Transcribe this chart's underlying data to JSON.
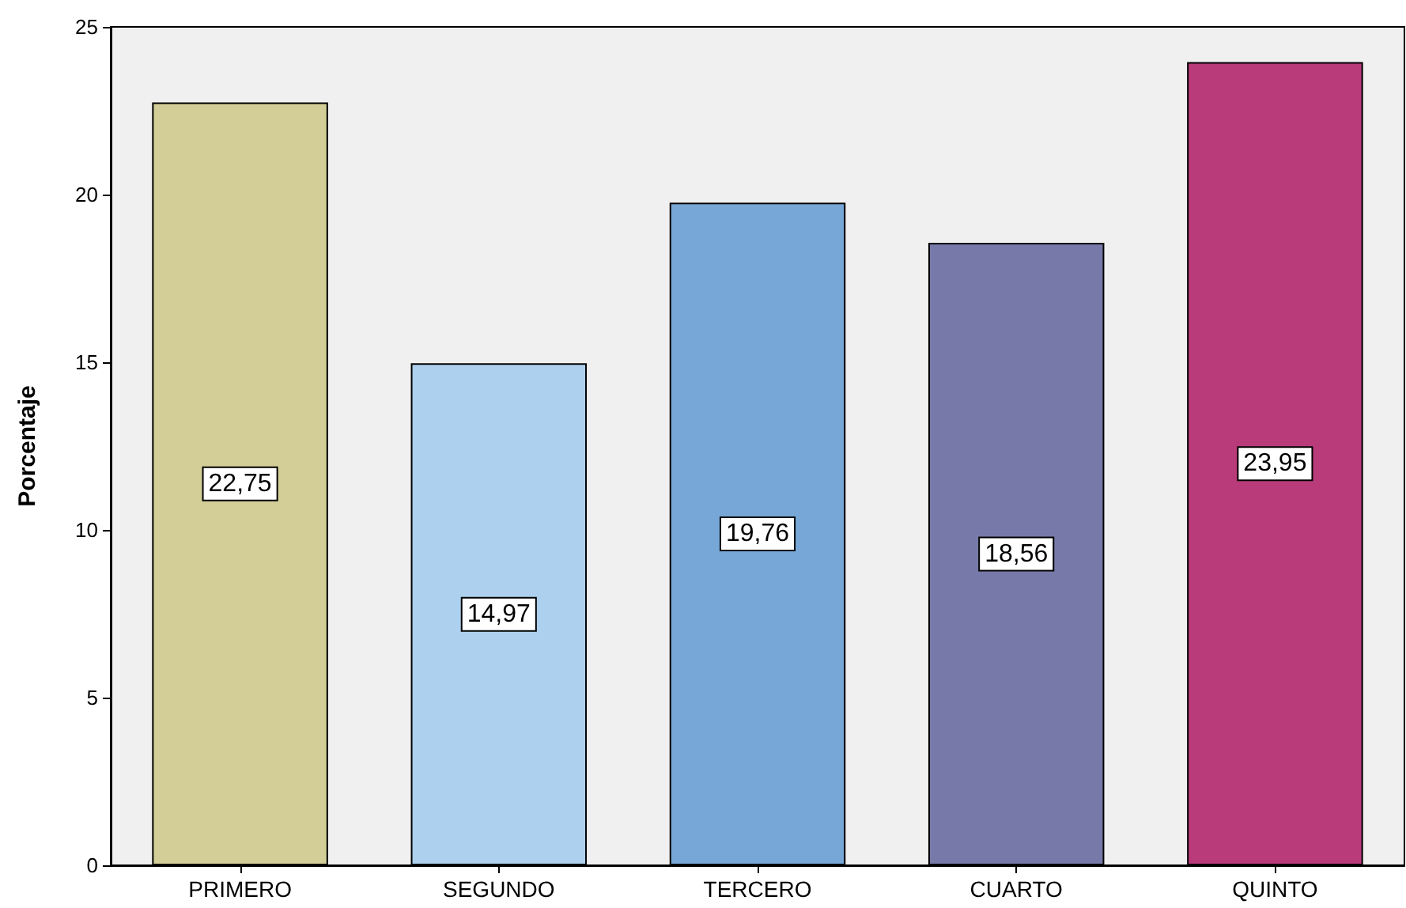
{
  "chart_data": {
    "type": "bar",
    "ylabel": "Porcentaje",
    "categories": [
      "PRIMERO",
      "SEGUNDO",
      "TERCERO",
      "CUARTO",
      "QUINTO"
    ],
    "values": [
      22.75,
      14.97,
      19.76,
      18.56,
      23.95
    ],
    "colors": [
      "#d3ce97",
      "#acd0ee",
      "#77a7d6",
      "#7779a8",
      "#b93b7a"
    ],
    "value_labels": [
      "22,75",
      "14,97",
      "19,76",
      "18,56",
      "23,95"
    ],
    "ylim": [
      0,
      25
    ],
    "yticks": [
      0,
      5,
      10,
      15,
      20,
      25
    ]
  }
}
